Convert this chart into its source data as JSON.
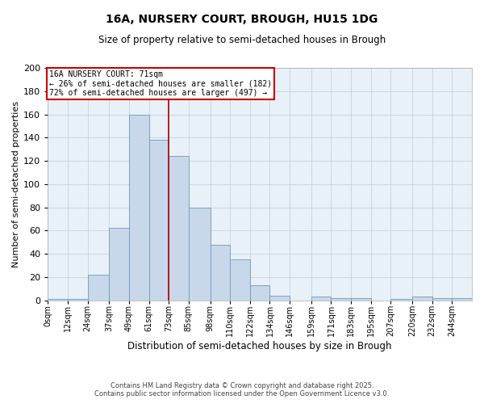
{
  "title1": "16A, NURSERY COURT, BROUGH, HU15 1DG",
  "title2": "Size of property relative to semi-detached houses in Brough",
  "xlabel": "Distribution of semi-detached houses by size in Brough",
  "ylabel": "Number of semi-detached properties",
  "bar_labels": [
    "0sqm",
    "12sqm",
    "24sqm",
    "37sqm",
    "49sqm",
    "61sqm",
    "73sqm",
    "85sqm",
    "98sqm",
    "110sqm",
    "122sqm",
    "134sqm",
    "146sqm",
    "159sqm",
    "171sqm",
    "183sqm",
    "195sqm",
    "207sqm",
    "220sqm",
    "232sqm",
    "244sqm"
  ],
  "bar_values": [
    1,
    1,
    22,
    62,
    160,
    138,
    124,
    80,
    48,
    35,
    13,
    4,
    0,
    3,
    2,
    2,
    0,
    1,
    3,
    2,
    2
  ],
  "bar_color": "#c8d8ea",
  "bar_edgecolor": "#7098b8",
  "property_line_x_label": "73sqm",
  "property_line_label": "16A NURSERY COURT: 71sqm",
  "smaller_pct": 26,
  "smaller_n": 182,
  "larger_pct": 72,
  "larger_n": 497,
  "annotation_box_color": "#cc0000",
  "vline_color": "#aa0000",
  "bg_color": "#e8f0f8",
  "grid_color": "#c0ccd8",
  "footer1": "Contains HM Land Registry data © Crown copyright and database right 2025.",
  "footer2": "Contains public sector information licensed under the Open Government Licence v3.0.",
  "ylim": [
    0,
    200
  ],
  "yticks": [
    0,
    20,
    40,
    60,
    80,
    100,
    120,
    140,
    160,
    180,
    200
  ]
}
